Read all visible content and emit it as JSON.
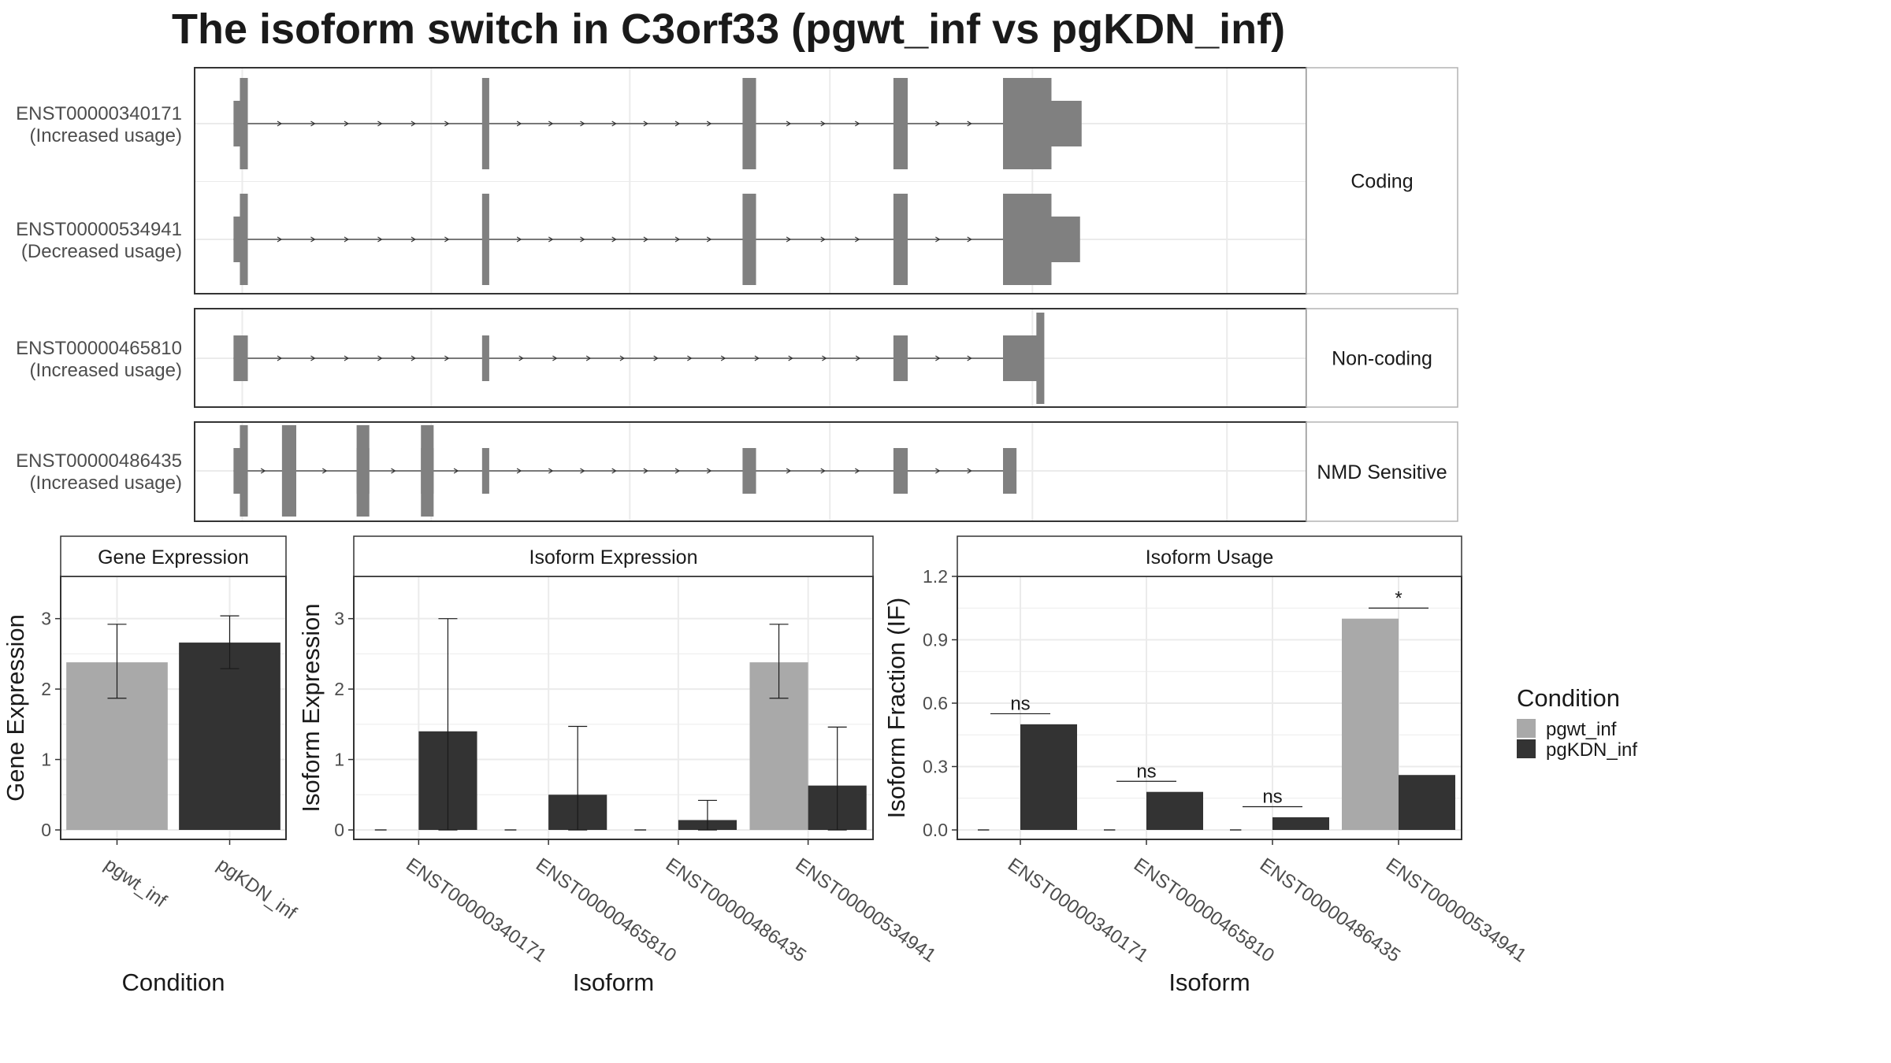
{
  "title": "The isoform switch in C3orf33 (pgwt_inf vs pgKDN_inf)",
  "colors": {
    "pgwt_inf": "#a9a9a9",
    "pgKDN_inf": "#333333",
    "structure": "#808080",
    "grid": "#ebebeb",
    "frame": "#333333",
    "strip_border": "#b3b3b3"
  },
  "structure_panels": [
    {
      "label": "Coding",
      "transcripts": [
        {
          "id": "ENST00000340171",
          "usage": "(Increased usage)",
          "noncoding_exons": [
            [
              49,
              58
            ],
            [
              1018,
              1117
            ]
          ],
          "coding_exons": [
            [
              57,
              67
            ],
            [
              362,
              371
            ],
            [
              690,
              707
            ],
            [
              880,
              898
            ],
            [
              1018,
              1079
            ]
          ]
        },
        {
          "id": "ENST00000534941",
          "usage": "(Decreased usage)",
          "noncoding_exons": [
            [
              49,
              58
            ],
            [
              1018,
              1115
            ]
          ],
          "coding_exons": [
            [
              57,
              67
            ],
            [
              362,
              371
            ],
            [
              690,
              707
            ],
            [
              880,
              898
            ],
            [
              1018,
              1079
            ]
          ]
        }
      ]
    },
    {
      "label": "Non-coding",
      "transcripts": [
        {
          "id": "ENST00000465810",
          "usage": "(Increased usage)",
          "noncoding_exons": [
            [
              49,
              67
            ],
            [
              362,
              371
            ],
            [
              880,
              898
            ],
            [
              1018,
              1068
            ]
          ],
          "coding_exons": [
            [
              1060,
              1070
            ]
          ]
        }
      ]
    },
    {
      "label": "NMD Sensitive",
      "transcripts": [
        {
          "id": "ENST00000486435",
          "usage": "(Increased usage)",
          "noncoding_exons": [
            [
              49,
              58
            ],
            [
              204,
              220
            ],
            [
              285,
              301
            ],
            [
              362,
              371
            ],
            [
              690,
              707
            ],
            [
              880,
              898
            ],
            [
              1018,
              1035
            ]
          ],
          "coding_exons": [
            [
              57,
              67
            ],
            [
              110,
              128
            ],
            [
              204,
              220
            ],
            [
              285,
              301
            ]
          ]
        }
      ]
    }
  ],
  "chart_data": [
    {
      "type": "bar",
      "title": "Gene Expression",
      "xlabel": "Condition",
      "ylabel": "Gene Expression",
      "ylim": [
        0,
        3.6
      ],
      "yticks": [
        0,
        1,
        2,
        3
      ],
      "categories": [
        "pgwt_inf",
        "pgKDN_inf"
      ],
      "values": [
        2.38,
        2.66
      ],
      "error_low": [
        1.87,
        2.29
      ],
      "error_high": [
        2.92,
        3.04
      ],
      "fill": [
        "pgwt_inf",
        "pgKDN_inf"
      ]
    },
    {
      "type": "bar",
      "title": "Isoform Expression",
      "xlabel": "Isoform",
      "ylabel": "Isoform Expression",
      "ylim": [
        0,
        3.6
      ],
      "yticks": [
        0,
        1,
        2,
        3
      ],
      "categories": [
        "ENST00000340171",
        "ENST00000465810",
        "ENST00000486435",
        "ENST00000534941"
      ],
      "series": [
        {
          "name": "pgwt_inf",
          "values": [
            0,
            0,
            0,
            2.38
          ],
          "error_low": [
            0,
            0,
            0,
            1.87
          ],
          "error_high": [
            0,
            0,
            0,
            2.92
          ]
        },
        {
          "name": "pgKDN_inf",
          "values": [
            1.4,
            0.5,
            0.14,
            0.63
          ],
          "error_low": [
            0,
            0,
            0,
            0
          ],
          "error_high": [
            3.0,
            1.47,
            0.42,
            1.46
          ]
        }
      ]
    },
    {
      "type": "bar",
      "title": "Isoform Usage",
      "xlabel": "Isoform",
      "ylabel": "Isoform Fraction (IF)",
      "ylim": [
        0,
        1.2
      ],
      "yticks": [
        "0.0",
        "0.3",
        "0.6",
        "0.9",
        "1.2"
      ],
      "categories": [
        "ENST00000340171",
        "ENST00000465810",
        "ENST00000486435",
        "ENST00000534941"
      ],
      "series": [
        {
          "name": "pgwt_inf",
          "values": [
            0,
            0,
            0,
            1.0
          ]
        },
        {
          "name": "pgKDN_inf",
          "values": [
            0.5,
            0.18,
            0.06,
            0.26
          ]
        }
      ],
      "significance": [
        "ns",
        "ns",
        "ns",
        "*"
      ],
      "significance_level": [
        0.55,
        0.23,
        0.11,
        1.05
      ]
    }
  ],
  "legend": {
    "title": "Condition",
    "items": [
      "pgwt_inf",
      "pgKDN_inf"
    ]
  }
}
